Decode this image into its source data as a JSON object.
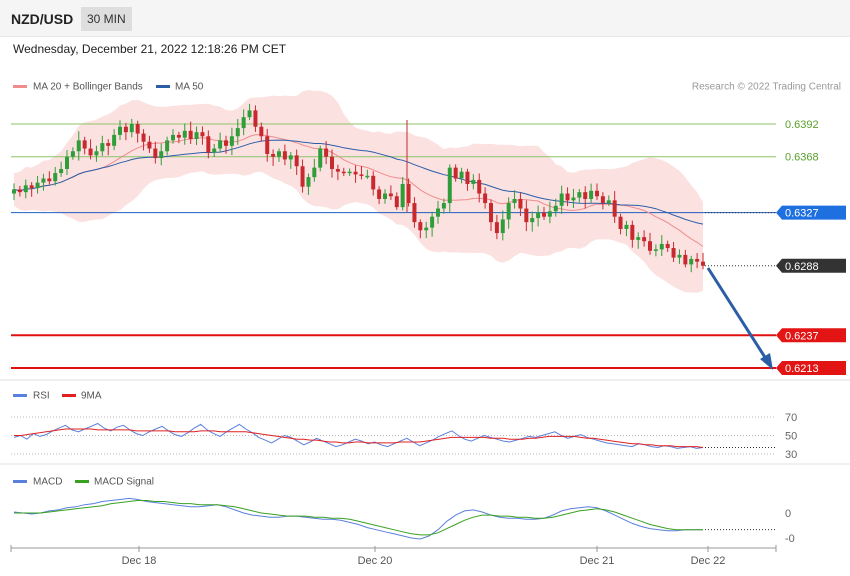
{
  "header": {
    "pair": "NZD/USD",
    "timeframe": "30 MIN",
    "datetime": "Wednesday, December 21, 2022 12:18:26 PM CET"
  },
  "legend": {
    "ma20": {
      "label": "MA 20 + Bollinger Bands",
      "color": "#f08c8c"
    },
    "ma50": {
      "label": "MA 50",
      "color": "#2c5ea8"
    },
    "credit": "Research © 2022 Trading Central"
  },
  "rsi_legend": {
    "rsi": "RSI",
    "ma": "9MA",
    "rsi_color": "#5b7fdc",
    "ma_color": "#e02020"
  },
  "macd_legend": {
    "macd": "MACD",
    "signal": "MACD Signal",
    "macd_color": "#5b7fdc",
    "signal_color": "#3aa020"
  },
  "colors": {
    "up": "#2f9e3a",
    "down": "#c8292e",
    "resistance": "#8cc36a",
    "support": "#e01010",
    "pivot": "#1f5fc0",
    "band_fill": "#fcdcdc",
    "arrow": "#2c5ea8"
  },
  "chart_data": [
    {
      "type": "candlestick",
      "title": "NZD/USD",
      "x": [
        "Dec 18",
        "Dec 20",
        "Dec 21",
        "Dec 22"
      ],
      "ylim": [
        0.6205,
        0.641
      ],
      "levels": [
        {
          "value": 0.6392,
          "label": "0.6392",
          "kind": "resistance"
        },
        {
          "value": 0.6368,
          "label": "0.6368",
          "kind": "resistance"
        },
        {
          "value": 0.6327,
          "label": "0.6327",
          "kind": "pivot"
        },
        {
          "value": 0.6237,
          "label": "0.6237",
          "kind": "support"
        },
        {
          "value": 0.6213,
          "label": "0.6213",
          "kind": "support"
        }
      ],
      "last_price": {
        "value": 0.6288,
        "label": "0.6288"
      },
      "close_path": [
        0.6344,
        0.6342,
        0.6347,
        0.6345,
        0.6349,
        0.6352,
        0.635,
        0.6356,
        0.6359,
        0.6368,
        0.6372,
        0.638,
        0.6374,
        0.6369,
        0.6372,
        0.6378,
        0.6376,
        0.6384,
        0.639,
        0.6386,
        0.6392,
        0.6385,
        0.6379,
        0.6374,
        0.6367,
        0.6372,
        0.638,
        0.6384,
        0.6382,
        0.6387,
        0.6381,
        0.6386,
        0.6383,
        0.6371,
        0.6374,
        0.638,
        0.6376,
        0.6383,
        0.6389,
        0.6397,
        0.6402,
        0.639,
        0.6383,
        0.637,
        0.6368,
        0.6372,
        0.6366,
        0.6369,
        0.6361,
        0.6346,
        0.6353,
        0.636,
        0.6374,
        0.6368,
        0.6359,
        0.6357,
        0.6356,
        0.6357,
        0.6355,
        0.6354,
        0.6354,
        0.6344,
        0.6337,
        0.6341,
        0.6339,
        0.6331,
        0.6348,
        0.6334,
        0.632,
        0.6314,
        0.6316,
        0.6324,
        0.633,
        0.6334,
        0.636,
        0.6352,
        0.6357,
        0.6348,
        0.6351,
        0.6341,
        0.6334,
        0.632,
        0.6312,
        0.6322,
        0.6334,
        0.6337,
        0.633,
        0.632,
        0.6323,
        0.6327,
        0.6324,
        0.6328,
        0.6332,
        0.6341,
        0.6336,
        0.6338,
        0.6342,
        0.6337,
        0.6343,
        0.6339,
        0.6334,
        0.6336,
        0.6324,
        0.6315,
        0.6318,
        0.6307,
        0.6309,
        0.6306,
        0.6299,
        0.63,
        0.6304,
        0.6301,
        0.6294,
        0.6296,
        0.6289,
        0.6293,
        0.6291,
        0.6288
      ]
    },
    {
      "type": "line",
      "title": "RSI",
      "yticks": [
        70,
        50,
        30
      ],
      "ylim": [
        25,
        75
      ],
      "series": [
        {
          "name": "RSI",
          "values": [
            48,
            50,
            46,
            52,
            49,
            51,
            55,
            58,
            61,
            56,
            54,
            57,
            60,
            63,
            58,
            55,
            59,
            61,
            56,
            52,
            50,
            54,
            57,
            60,
            55,
            51,
            49,
            53,
            58,
            62,
            56,
            52,
            49,
            54,
            58,
            62,
            57,
            53,
            48,
            45,
            42,
            46,
            50,
            48,
            44,
            40,
            43,
            47,
            44,
            41,
            38,
            40,
            43,
            46,
            44,
            41,
            43,
            40,
            38,
            41,
            44,
            47,
            43,
            39,
            42,
            45,
            49,
            52,
            55,
            50,
            46,
            44,
            47,
            50,
            48,
            46,
            44,
            43,
            45,
            47,
            49,
            48,
            50,
            52,
            54,
            50,
            47,
            49,
            51,
            48,
            46,
            44,
            42,
            41,
            40,
            39,
            38,
            41,
            40,
            38,
            37,
            39,
            38,
            36,
            37,
            38,
            36,
            37
          ]
        },
        {
          "name": "9MA",
          "values": [
            50,
            50,
            51,
            52,
            53,
            54,
            55,
            56,
            57,
            57,
            57,
            57,
            57,
            56,
            56,
            56,
            56,
            56,
            56,
            55,
            55,
            55,
            55,
            55,
            55,
            54,
            54,
            54,
            54,
            55,
            55,
            55,
            54,
            54,
            54,
            54,
            54,
            53,
            52,
            51,
            50,
            49,
            48,
            47,
            46,
            46,
            45,
            45,
            44,
            43,
            43,
            42,
            42,
            43,
            43,
            42,
            42,
            42,
            42,
            42,
            43,
            43,
            43,
            43,
            44,
            45,
            46,
            47,
            48,
            48,
            48,
            48,
            48,
            48,
            47,
            47,
            47,
            46,
            46,
            46,
            47,
            47,
            48,
            49,
            49,
            49,
            49,
            49,
            48,
            47,
            47,
            46,
            45,
            44,
            43,
            42,
            41,
            41,
            40,
            40,
            39,
            39,
            39,
            38,
            38,
            38,
            38,
            37
          ]
        }
      ]
    },
    {
      "type": "line",
      "title": "MACD",
      "yticks": [
        0,
        0
      ],
      "ylim": [
        -0.003,
        0.0025
      ],
      "series": [
        {
          "name": "MACD",
          "values": [
            0.0001,
            0.0,
            -0.0001,
            0.0,
            0.0002,
            0.0003,
            0.0005,
            0.0006,
            0.0008,
            0.0009,
            0.0011,
            0.0012,
            0.0013,
            0.0014,
            0.0013,
            0.0011,
            0.001,
            0.0009,
            0.0008,
            0.0007,
            0.0006,
            0.0006,
            0.0007,
            0.0008,
            0.0006,
            0.0003,
            0.0,
            -0.0002,
            -0.0003,
            -0.0004,
            -0.0004,
            -0.0003,
            -0.0003,
            -0.0004,
            -0.0005,
            -0.0006,
            -0.0006,
            -0.0007,
            -0.0009,
            -0.0011,
            -0.0014,
            -0.0016,
            -0.0018,
            -0.002,
            -0.0022,
            -0.0024,
            -0.0025,
            -0.0022,
            -0.0016,
            -0.0008,
            -0.0002,
            0.0002,
            0.0003,
            0.0001,
            -0.0002,
            -0.0004,
            -0.0005,
            -0.0005,
            -0.0006,
            -0.0006,
            -0.0005,
            -0.0002,
            0.0002,
            0.0004,
            0.0005,
            0.0006,
            0.0005,
            0.0002,
            -0.0002,
            -0.0006,
            -0.001,
            -0.0013,
            -0.0015,
            -0.0016,
            -0.0017,
            -0.0017,
            -0.0016,
            -0.0016,
            -0.0016
          ]
        },
        {
          "name": "MACD Signal",
          "values": [
            0.0,
            0.0,
            0.0,
            0.0,
            0.0001,
            0.0002,
            0.0003,
            0.0004,
            0.0005,
            0.0006,
            0.0007,
            0.0009,
            0.001,
            0.0011,
            0.0012,
            0.0012,
            0.0011,
            0.0011,
            0.001,
            0.0009,
            0.0009,
            0.0008,
            0.0008,
            0.0008,
            0.0007,
            0.0006,
            0.0004,
            0.0002,
            0.0,
            -0.0001,
            -0.0002,
            -0.0003,
            -0.0003,
            -0.0003,
            -0.0004,
            -0.0004,
            -0.0005,
            -0.0005,
            -0.0006,
            -0.0008,
            -0.001,
            -0.0012,
            -0.0014,
            -0.0016,
            -0.0018,
            -0.002,
            -0.0021,
            -0.0021,
            -0.0019,
            -0.0015,
            -0.0011,
            -0.0007,
            -0.0004,
            -0.0002,
            -0.0002,
            -0.0003,
            -0.0003,
            -0.0004,
            -0.0004,
            -0.0005,
            -0.0005,
            -0.0004,
            -0.0002,
            0.0,
            0.0002,
            0.0003,
            0.0004,
            0.0003,
            0.0001,
            -0.0002,
            -0.0005,
            -0.0008,
            -0.0011,
            -0.0013,
            -0.0015,
            -0.0016,
            -0.0016,
            -0.0016,
            -0.0016
          ]
        }
      ]
    }
  ]
}
